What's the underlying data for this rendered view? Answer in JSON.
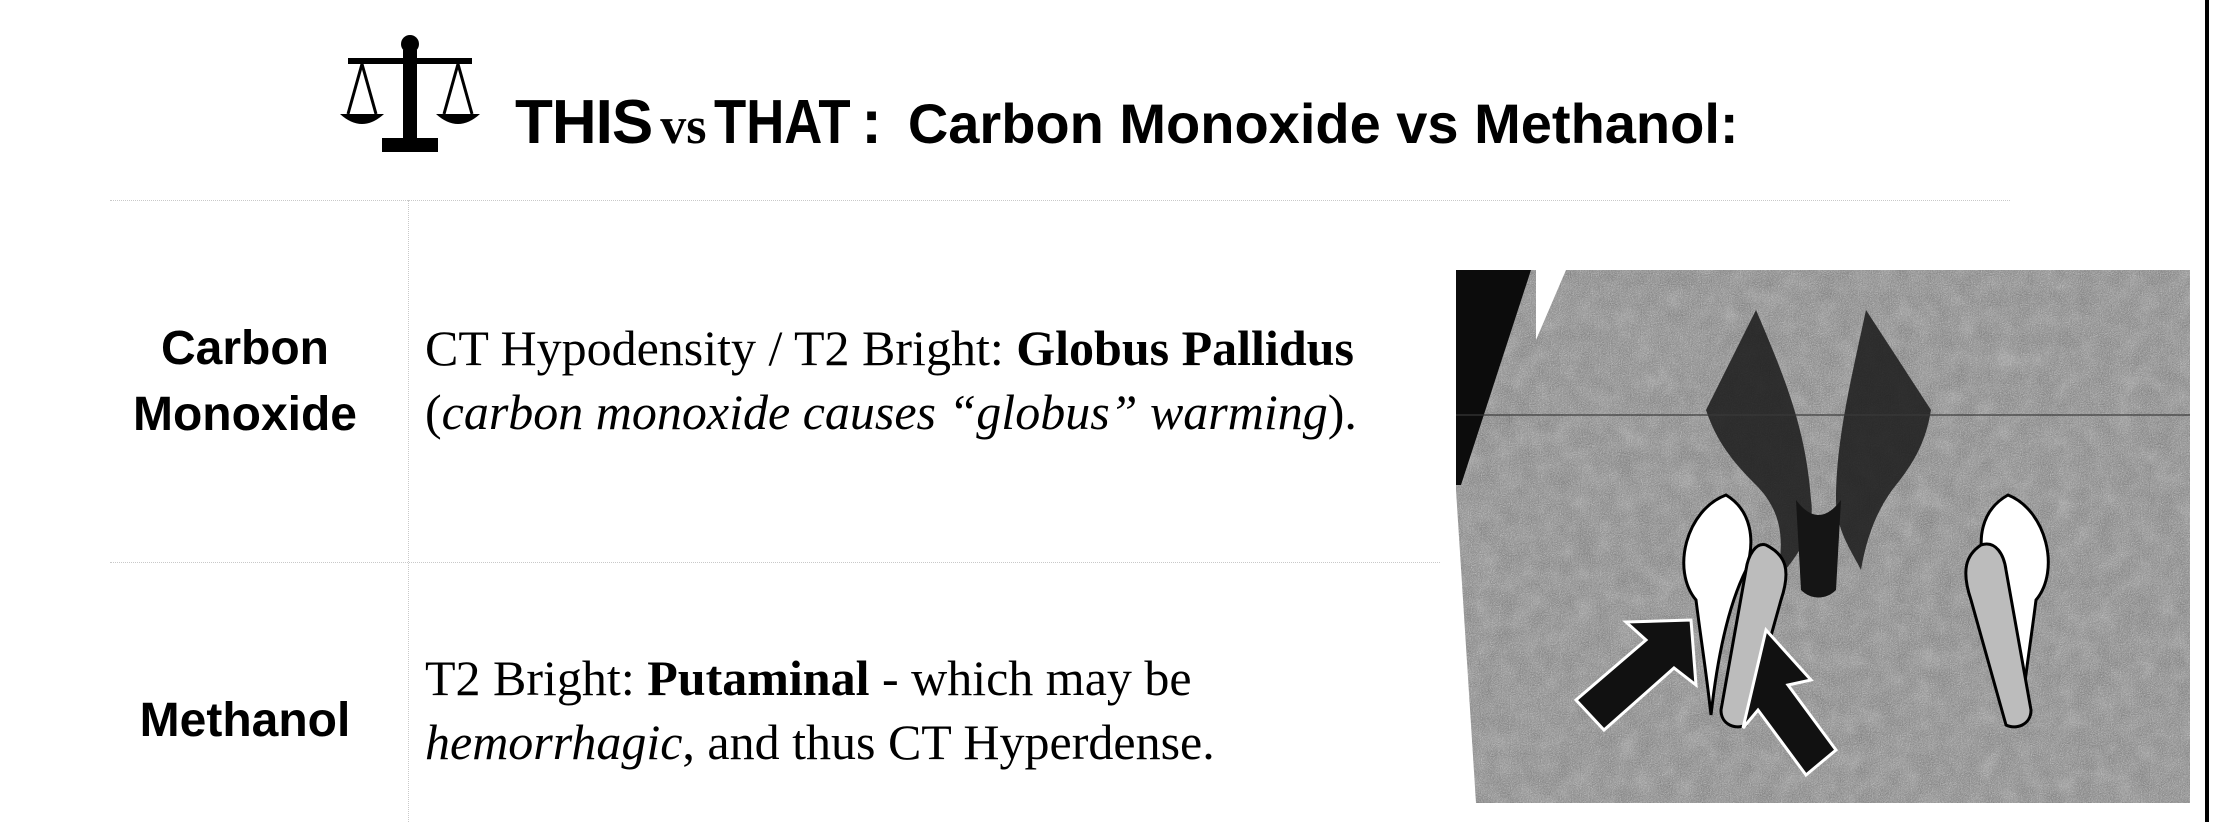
{
  "title": {
    "this": "THIS",
    "vs": "vs",
    "that": "THAT",
    "colon": ":",
    "topic": "Carbon Monoxide vs Methanol:"
  },
  "rows": [
    {
      "label_line1": "Carbon",
      "label_line2": "Monoxide",
      "line1_pre": "CT Hypodensity / T2 Bright: ",
      "line1_bold": "Globus Pallidus",
      "line2_open": "(",
      "line2_italic": "carbon monoxide causes “globus” warming",
      "line2_close": ")."
    },
    {
      "label": "Methanol",
      "line1_pre": "T2 Bright: ",
      "line1_bold": "Putaminal",
      "line1_post": " - which may be",
      "line2_italic": "hemorrhagic",
      "line2_post": ", and thus CT Hyperdense."
    }
  ],
  "image": {
    "icon": "brain-mri-icon",
    "arrow_color": "#111111"
  }
}
